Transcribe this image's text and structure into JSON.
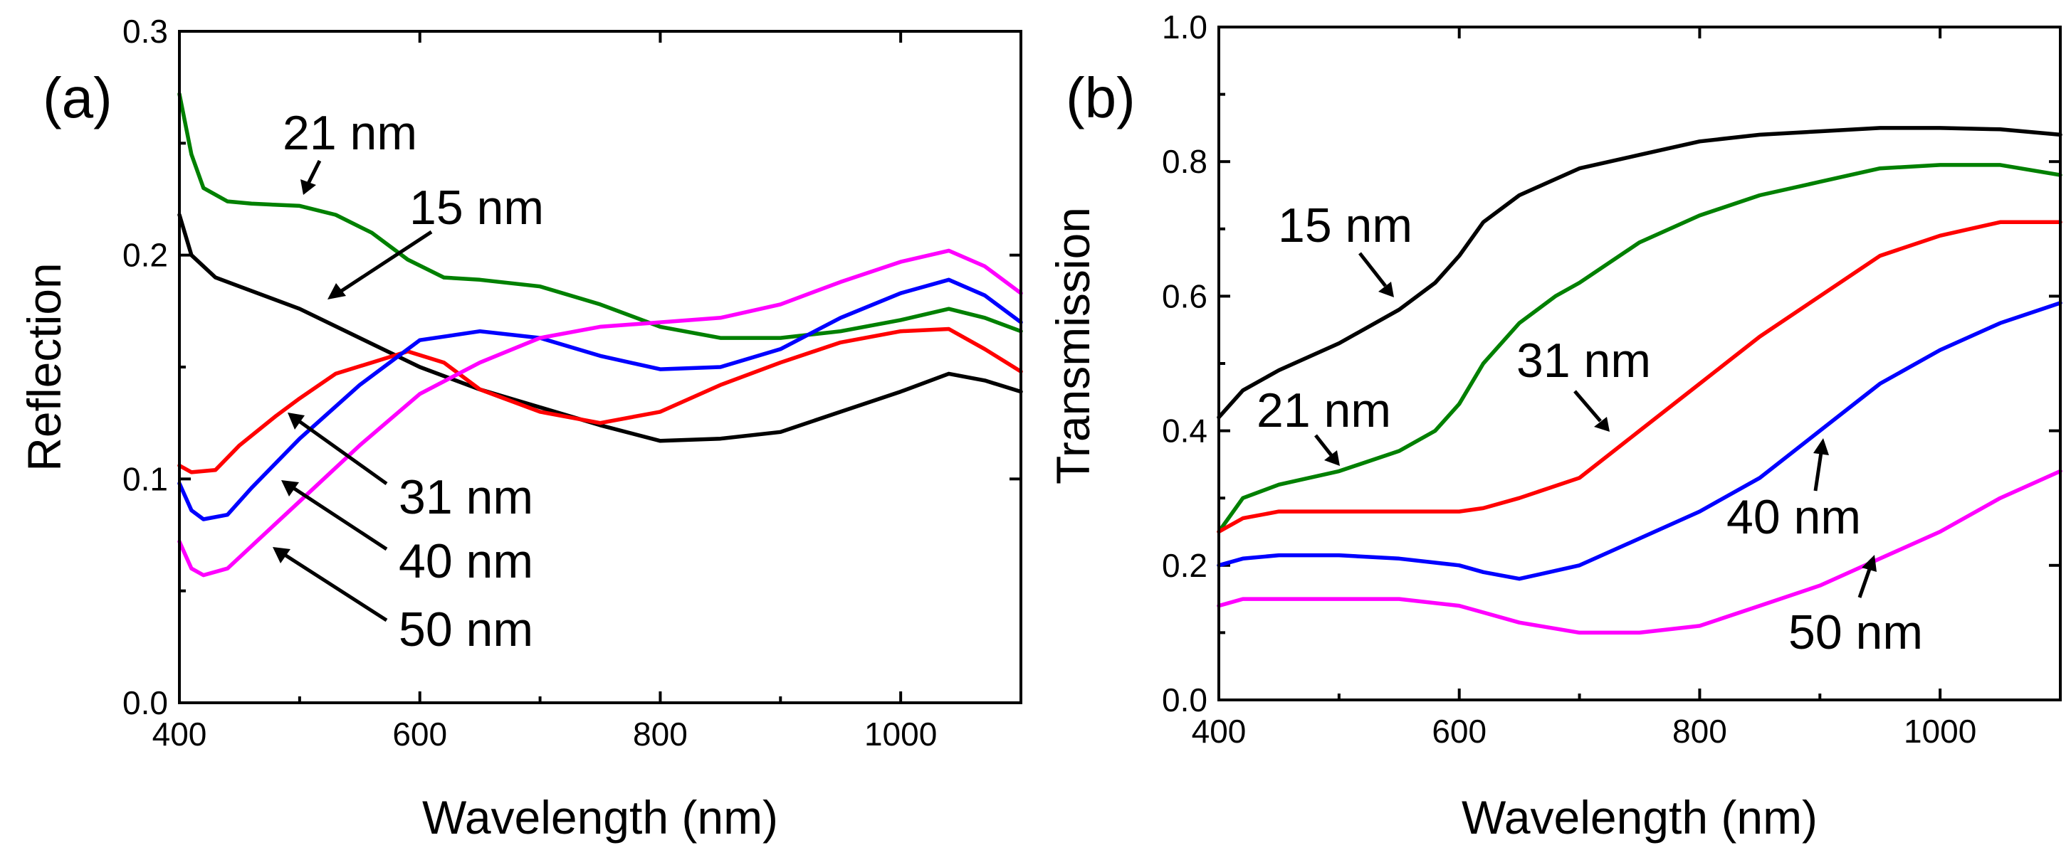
{
  "chart_data": [
    {
      "panel": "(a)",
      "type": "line",
      "xlabel": "Wavelength (nm)",
      "ylabel": "Reflection",
      "xlim": [
        400,
        1100
      ],
      "ylim": [
        0.0,
        0.3
      ],
      "xticks": [
        400,
        600,
        800,
        1000
      ],
      "xtick_labels": [
        "400",
        "600",
        "800",
        "1000"
      ],
      "yticks": [
        0.0,
        0.1,
        0.2,
        0.3
      ],
      "ytick_labels": [
        "0.0",
        "0.1",
        "0.2",
        "0.3"
      ],
      "series": [
        {
          "name": "15 nm",
          "color": "#000000",
          "x": [
            400,
            410,
            430,
            450,
            500,
            550,
            600,
            650,
            700,
            750,
            800,
            850,
            900,
            950,
            1000,
            1040,
            1070,
            1100
          ],
          "y": [
            0.218,
            0.2,
            0.19,
            0.186,
            0.176,
            0.163,
            0.15,
            0.14,
            0.132,
            0.124,
            0.117,
            0.118,
            0.121,
            0.13,
            0.139,
            0.147,
            0.144,
            0.139
          ]
        },
        {
          "name": "21 nm",
          "color": "#008000",
          "x": [
            400,
            410,
            420,
            440,
            460,
            500,
            530,
            560,
            590,
            620,
            650,
            700,
            750,
            800,
            850,
            900,
            950,
            1000,
            1040,
            1070,
            1100
          ],
          "y": [
            0.272,
            0.245,
            0.23,
            0.224,
            0.223,
            0.222,
            0.218,
            0.21,
            0.198,
            0.19,
            0.189,
            0.186,
            0.178,
            0.168,
            0.163,
            0.163,
            0.166,
            0.171,
            0.176,
            0.172,
            0.166
          ]
        },
        {
          "name": "31 nm",
          "color": "#ff0000",
          "x": [
            400,
            410,
            430,
            450,
            480,
            500,
            530,
            560,
            590,
            620,
            650,
            700,
            750,
            800,
            850,
            900,
            950,
            1000,
            1040,
            1070,
            1100
          ],
          "y": [
            0.106,
            0.103,
            0.104,
            0.115,
            0.128,
            0.136,
            0.147,
            0.152,
            0.157,
            0.152,
            0.14,
            0.13,
            0.125,
            0.13,
            0.142,
            0.152,
            0.161,
            0.166,
            0.167,
            0.158,
            0.148
          ]
        },
        {
          "name": "40 nm",
          "color": "#0000ff",
          "x": [
            400,
            410,
            420,
            440,
            460,
            500,
            550,
            600,
            650,
            700,
            750,
            800,
            850,
            900,
            950,
            1000,
            1040,
            1070,
            1100
          ],
          "y": [
            0.098,
            0.086,
            0.082,
            0.084,
            0.096,
            0.118,
            0.142,
            0.162,
            0.166,
            0.163,
            0.155,
            0.149,
            0.15,
            0.158,
            0.172,
            0.183,
            0.189,
            0.182,
            0.17
          ]
        },
        {
          "name": "50 nm",
          "color": "#ff00ff",
          "x": [
            400,
            410,
            420,
            440,
            460,
            500,
            550,
            600,
            650,
            700,
            750,
            800,
            850,
            900,
            950,
            1000,
            1040,
            1070,
            1100
          ],
          "y": [
            0.072,
            0.06,
            0.057,
            0.06,
            0.07,
            0.09,
            0.115,
            0.138,
            0.152,
            0.163,
            0.168,
            0.17,
            0.172,
            0.178,
            0.188,
            0.197,
            0.202,
            0.195,
            0.183
          ]
        }
      ],
      "annotations": [
        {
          "text": "21 nm",
          "target": "21 nm"
        },
        {
          "text": "15 nm",
          "target": "15 nm"
        },
        {
          "text": "31 nm",
          "target": "31 nm"
        },
        {
          "text": "40 nm",
          "target": "40 nm"
        },
        {
          "text": "50 nm",
          "target": "50 nm"
        }
      ]
    },
    {
      "panel": "(b)",
      "type": "line",
      "xlabel": "Wavelength (nm)",
      "ylabel": "Transmission",
      "xlim": [
        400,
        1100
      ],
      "ylim": [
        0.0,
        1.0
      ],
      "xticks": [
        400,
        600,
        800,
        1000
      ],
      "xtick_labels": [
        "400",
        "600",
        "800",
        "1000"
      ],
      "yticks": [
        0.0,
        0.2,
        0.4,
        0.6,
        0.8,
        1.0
      ],
      "ytick_labels": [
        "0.0",
        "0.2",
        "0.4",
        "0.6",
        "0.8",
        "1.0"
      ],
      "series": [
        {
          "name": "15 nm",
          "color": "#000000",
          "x": [
            400,
            420,
            450,
            500,
            550,
            580,
            600,
            620,
            650,
            700,
            750,
            800,
            850,
            900,
            950,
            1000,
            1050,
            1100
          ],
          "y": [
            0.42,
            0.46,
            0.49,
            0.53,
            0.58,
            0.62,
            0.66,
            0.71,
            0.75,
            0.79,
            0.81,
            0.83,
            0.84,
            0.845,
            0.85,
            0.85,
            0.848,
            0.84
          ]
        },
        {
          "name": "21 nm",
          "color": "#008000",
          "x": [
            400,
            420,
            450,
            500,
            550,
            580,
            600,
            620,
            650,
            680,
            700,
            750,
            800,
            850,
            900,
            950,
            1000,
            1050,
            1100
          ],
          "y": [
            0.25,
            0.3,
            0.32,
            0.34,
            0.37,
            0.4,
            0.44,
            0.5,
            0.56,
            0.6,
            0.62,
            0.68,
            0.72,
            0.75,
            0.77,
            0.79,
            0.795,
            0.795,
            0.78
          ]
        },
        {
          "name": "31 nm",
          "color": "#ff0000",
          "x": [
            400,
            420,
            450,
            500,
            550,
            600,
            620,
            650,
            700,
            750,
            800,
            850,
            900,
            950,
            1000,
            1050,
            1100
          ],
          "y": [
            0.25,
            0.27,
            0.28,
            0.28,
            0.28,
            0.28,
            0.285,
            0.3,
            0.33,
            0.4,
            0.47,
            0.54,
            0.6,
            0.66,
            0.69,
            0.71,
            0.71
          ]
        },
        {
          "name": "40 nm",
          "color": "#0000ff",
          "x": [
            400,
            420,
            450,
            500,
            550,
            600,
            620,
            650,
            700,
            750,
            800,
            850,
            900,
            950,
            1000,
            1050,
            1100
          ],
          "y": [
            0.2,
            0.21,
            0.215,
            0.215,
            0.21,
            0.2,
            0.19,
            0.18,
            0.2,
            0.24,
            0.28,
            0.33,
            0.4,
            0.47,
            0.52,
            0.56,
            0.59
          ]
        },
        {
          "name": "50 nm",
          "color": "#ff00ff",
          "x": [
            400,
            420,
            450,
            500,
            550,
            600,
            620,
            650,
            700,
            750,
            800,
            850,
            900,
            950,
            1000,
            1050,
            1100
          ],
          "y": [
            0.14,
            0.15,
            0.15,
            0.15,
            0.15,
            0.14,
            0.13,
            0.115,
            0.1,
            0.1,
            0.11,
            0.14,
            0.17,
            0.21,
            0.25,
            0.3,
            0.34
          ]
        }
      ],
      "annotations": [
        {
          "text": "15 nm",
          "target": "15 nm"
        },
        {
          "text": "21 nm",
          "target": "21 nm"
        },
        {
          "text": "31 nm",
          "target": "31 nm"
        },
        {
          "text": "40 nm",
          "target": "40 nm"
        },
        {
          "text": "50 nm",
          "target": "50 nm"
        }
      ]
    }
  ]
}
